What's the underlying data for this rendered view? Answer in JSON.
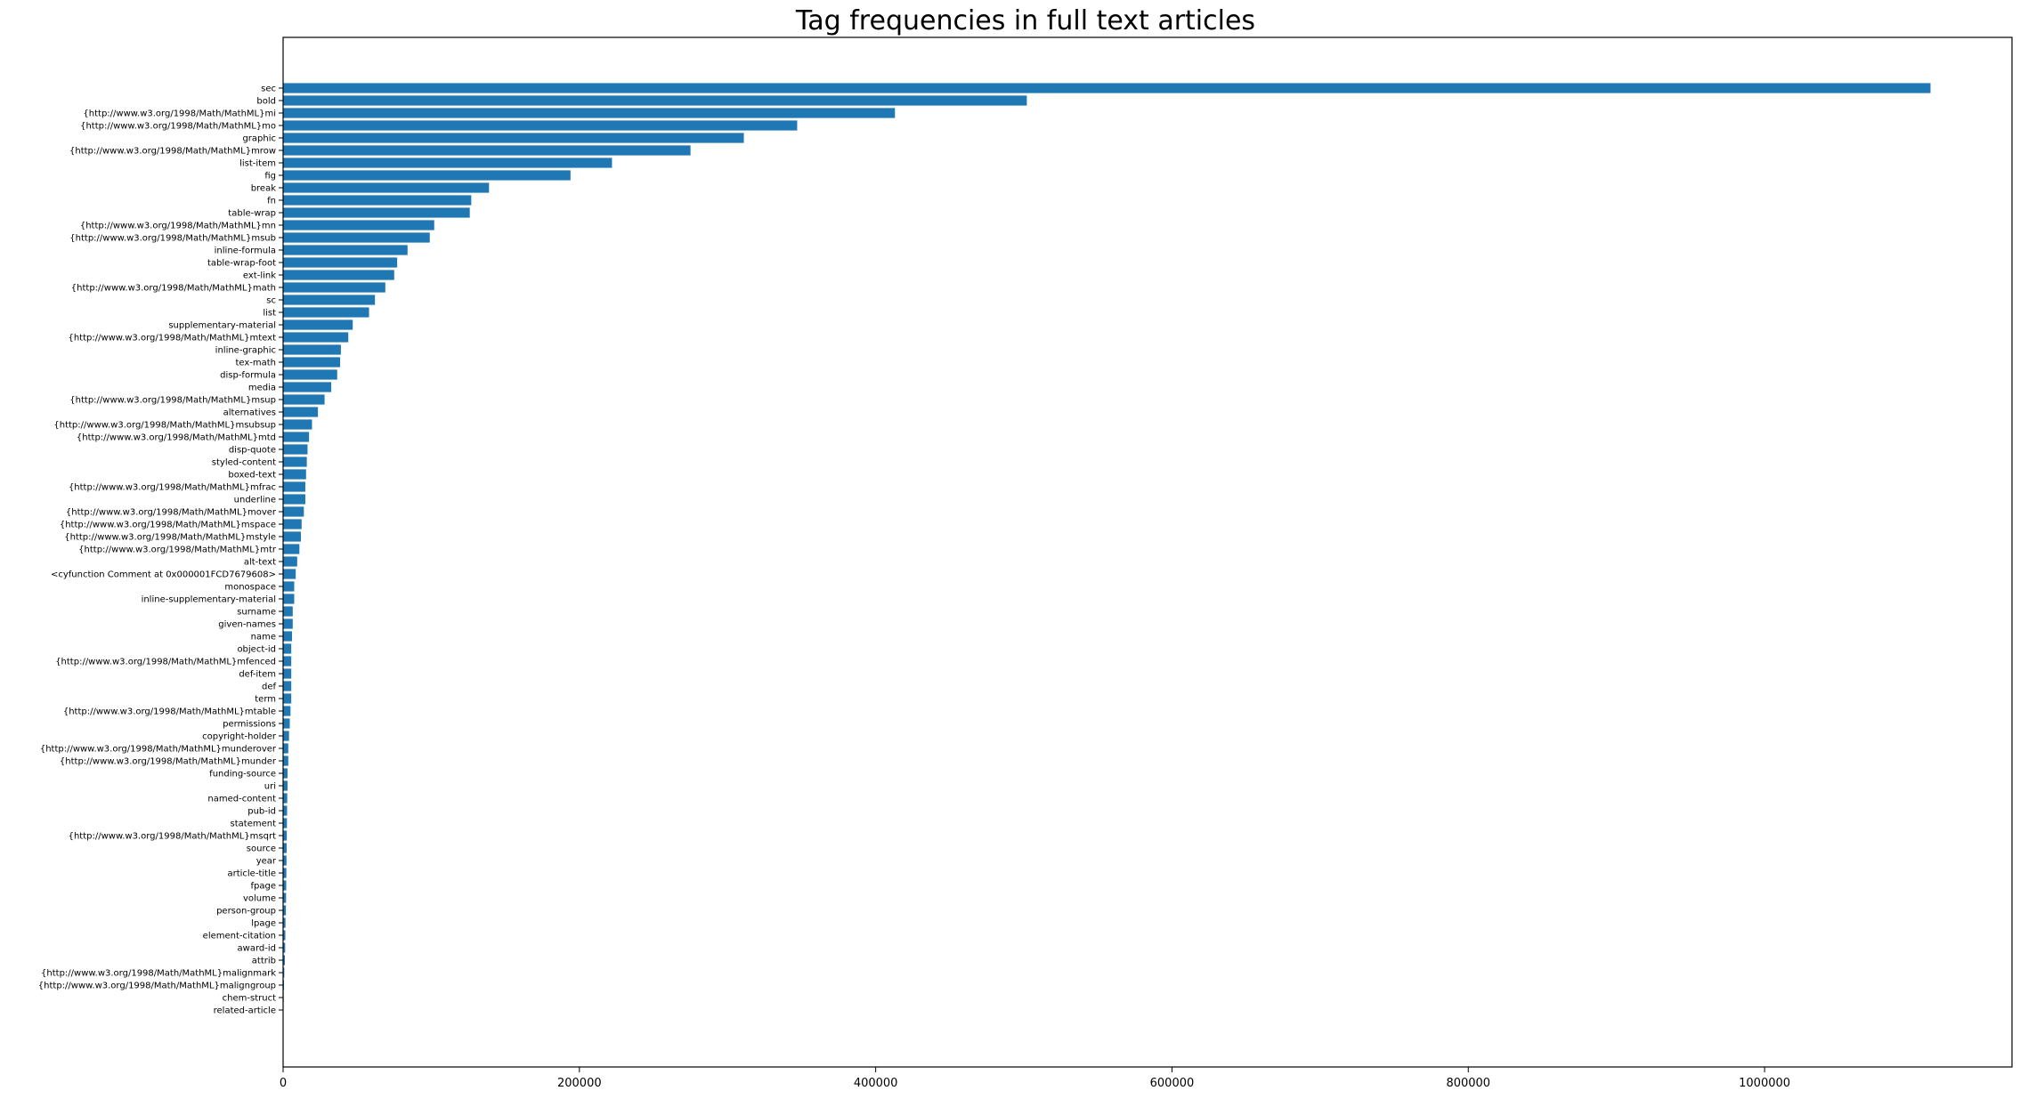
{
  "chart_data": {
    "type": "bar",
    "orientation": "horizontal",
    "title": "Tag frequencies in full text articles",
    "xlabel": "",
    "ylabel": "",
    "xlim": [
      0,
      1167000
    ],
    "x_ticks": [
      0,
      200000,
      400000,
      600000,
      800000,
      1000000
    ],
    "x_tick_labels": [
      "0",
      "200000",
      "400000",
      "600000",
      "800000",
      "1000000"
    ],
    "grid": false,
    "bar_color": "#1f77b4",
    "categories": [
      "sec",
      "bold",
      "{http://www.w3.org/1998/Math/MathML}mi",
      "{http://www.w3.org/1998/Math/MathML}mo",
      "graphic",
      "{http://www.w3.org/1998/Math/MathML}mrow",
      "list-item",
      "fig",
      "break",
      "fn",
      "table-wrap",
      "{http://www.w3.org/1998/Math/MathML}mn",
      "{http://www.w3.org/1998/Math/MathML}msub",
      "inline-formula",
      "table-wrap-foot",
      "ext-link",
      "{http://www.w3.org/1998/Math/MathML}math",
      "sc",
      "list",
      "supplementary-material",
      "{http://www.w3.org/1998/Math/MathML}mtext",
      "inline-graphic",
      "tex-math",
      "disp-formula",
      "media",
      "{http://www.w3.org/1998/Math/MathML}msup",
      "alternatives",
      "{http://www.w3.org/1998/Math/MathML}msubsup",
      "{http://www.w3.org/1998/Math/MathML}mtd",
      "disp-quote",
      "styled-content",
      "boxed-text",
      "{http://www.w3.org/1998/Math/MathML}mfrac",
      "underline",
      "{http://www.w3.org/1998/Math/MathML}mover",
      "{http://www.w3.org/1998/Math/MathML}mspace",
      "{http://www.w3.org/1998/Math/MathML}mstyle",
      "{http://www.w3.org/1998/Math/MathML}mtr",
      "alt-text",
      "<cyfunction Comment at 0x000001FCD7679608>",
      "monospace",
      "inline-supplementary-material",
      "surname",
      "given-names",
      "name",
      "object-id",
      "{http://www.w3.org/1998/Math/MathML}mfenced",
      "def-item",
      "def",
      "term",
      "{http://www.w3.org/1998/Math/MathML}mtable",
      "permissions",
      "copyright-holder",
      "{http://www.w3.org/1998/Math/MathML}munderover",
      "{http://www.w3.org/1998/Math/MathML}munder",
      "funding-source",
      "uri",
      "named-content",
      "pub-id",
      "statement",
      "{http://www.w3.org/1998/Math/MathML}msqrt",
      "source",
      "year",
      "article-title",
      "fpage",
      "volume",
      "person-group",
      "lpage",
      "element-citation",
      "award-id",
      "attrib",
      "{http://www.w3.org/1998/Math/MathML}malignmark",
      "{http://www.w3.org/1998/Math/MathML}maligngroup",
      "chem-struct",
      "related-article"
    ],
    "values": [
      1112000,
      502000,
      413000,
      347000,
      311000,
      275000,
      222000,
      194000,
      139000,
      127000,
      126000,
      102000,
      99000,
      84000,
      77000,
      75000,
      69000,
      62000,
      58000,
      47000,
      44000,
      39000,
      38500,
      36500,
      32500,
      28000,
      23500,
      19500,
      17500,
      16500,
      16000,
      15500,
      15000,
      15000,
      14000,
      12500,
      12000,
      11000,
      9500,
      8500,
      7500,
      7500,
      6500,
      6500,
      6000,
      5500,
      5500,
      5500,
      5500,
      5500,
      5000,
      4500,
      4000,
      3500,
      3500,
      3000,
      3000,
      2800,
      2700,
      2600,
      2500,
      2400,
      2300,
      2200,
      2100,
      2000,
      1900,
      1600,
      1500,
      1400,
      1200,
      800,
      600,
      400,
      300
    ]
  }
}
